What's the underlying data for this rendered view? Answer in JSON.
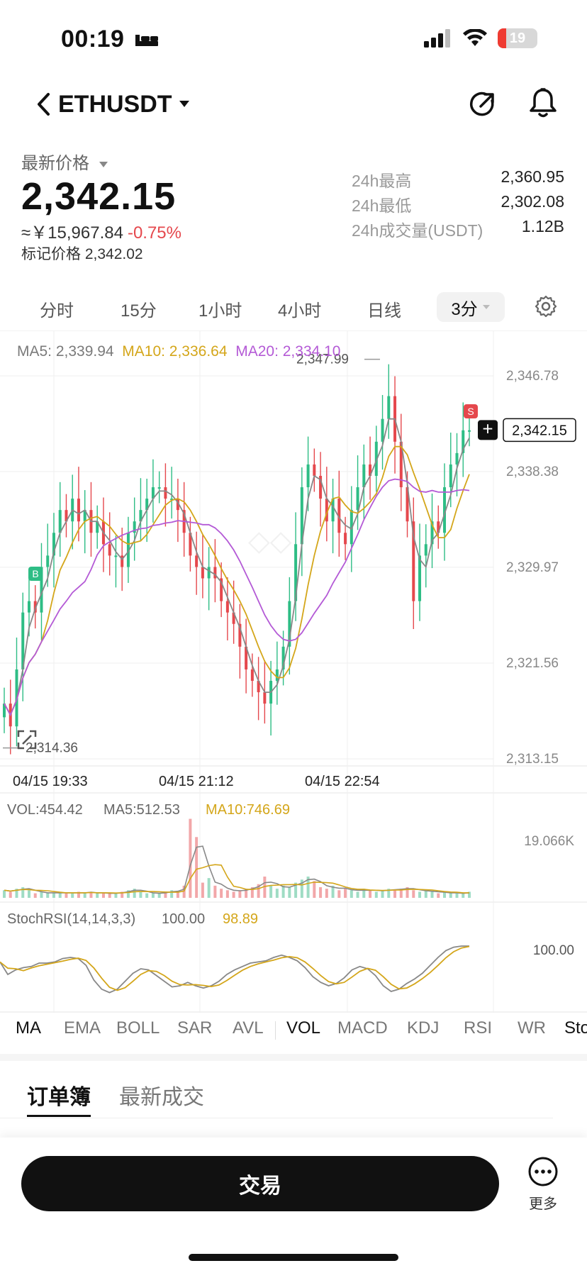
{
  "status_bar": {
    "time": "00:19",
    "battery": "19"
  },
  "header": {
    "symbol": "ETHUSDT"
  },
  "price": {
    "label": "最新价格",
    "last": "2,342.15",
    "cny": "≈￥15,967.84",
    "change": "-0.75%",
    "mark_label": "标记价格",
    "mark_value": "2,342.02",
    "stats": [
      {
        "label": "24h最高",
        "value": "2,360.95"
      },
      {
        "label": "24h最低",
        "value": "2,302.08"
      },
      {
        "label": "24h成交量(USDT)",
        "value": "1.12B"
      }
    ]
  },
  "timeframes": [
    "分时",
    "15分",
    "1小时",
    "4小时",
    "日线"
  ],
  "timeframe_active": "3分",
  "chart": {
    "ma_legend": {
      "ma5": "MA5: 2,339.94",
      "ma10": "MA10: 2,336.64",
      "ma20": "MA20: 2,334.10"
    },
    "y_ticks": [
      "2,346.78",
      "2,338.38",
      "2,329.97",
      "2,321.56",
      "2,313.15"
    ],
    "high_label": "2,347.99",
    "low_label": "2,314.36",
    "last_price_tag": "2,342.15",
    "buy_marker": "B",
    "sell_marker": "S",
    "x_ticks": [
      "04/15 19:33",
      "04/15 21:12",
      "04/15 22:54"
    ],
    "vol_legend": {
      "vol": "VOL:454.42",
      "ma5": "MA5:512.53",
      "ma10": "MA10:746.69"
    },
    "vol_max": "19.066K",
    "rsi_legend": {
      "name": "StochRSI(14,14,3,3)",
      "k": "100.00",
      "d": "98.89"
    },
    "rsi_tick": "100.00",
    "colors": {
      "up": "#2ebd85",
      "down": "#e5484d",
      "ma5": "#888888",
      "ma10": "#d4a61a",
      "ma20": "#b45ad6"
    }
  },
  "chart_data": {
    "type": "candlestick",
    "ylim": [
      2313.15,
      2346.78
    ],
    "x_ticks": [
      "04/15 19:33",
      "04/15 21:12",
      "04/15 22:54"
    ],
    "close_series": [
      2318,
      2316,
      2321,
      2326,
      2327,
      2326,
      2330,
      2331,
      2333,
      2335,
      2334,
      2336,
      2334,
      2335,
      2333,
      2334,
      2332,
      2331,
      2331,
      2330,
      2333,
      2334,
      2335,
      2336,
      2337,
      2337,
      2336,
      2336,
      2335,
      2333,
      2331,
      2330,
      2329,
      2330,
      2329,
      2327,
      2326,
      2325,
      2323,
      2321,
      2320,
      2319,
      2318,
      2320,
      2321,
      2323,
      2327,
      2332,
      2337,
      2339,
      2338,
      2336,
      2334,
      2336,
      2333,
      2332,
      2335,
      2337,
      2339,
      2338,
      2341,
      2343,
      2345,
      2341,
      2337,
      2334,
      2327,
      2331,
      2332,
      2334,
      2333,
      2337,
      2339,
      2340,
      2342,
      2342
    ],
    "volumes": [
      0.5,
      0.4,
      0.6,
      0.7,
      0.5,
      0.3,
      0.4,
      0.3,
      0.3,
      0.4,
      0.3,
      0.3,
      0.4,
      0.3,
      0.4,
      0.3,
      0.3,
      0.3,
      0.3,
      0.4,
      0.5,
      0.6,
      0.4,
      0.3,
      0.3,
      0.3,
      0.4,
      0.5,
      0.4,
      0.8,
      5.2,
      4.0,
      1.0,
      1.3,
      0.8,
      0.6,
      0.5,
      0.4,
      0.5,
      0.6,
      0.7,
      0.9,
      1.4,
      0.8,
      0.6,
      0.8,
      0.7,
      1.0,
      1.2,
      1.4,
      1.1,
      0.7,
      0.6,
      0.8,
      0.5,
      0.6,
      0.5,
      0.4,
      0.6,
      0.5,
      0.4,
      0.5,
      0.6,
      0.5,
      0.6,
      0.7,
      0.5,
      0.4,
      0.5,
      0.4,
      0.3,
      0.4,
      0.3,
      0.3,
      0.3,
      0.4
    ],
    "stoch_rsi_k": [
      72,
      50,
      58,
      62,
      64,
      70,
      70,
      72,
      78,
      80,
      78,
      66,
      40,
      24,
      18,
      24,
      38,
      52,
      60,
      58,
      48,
      38,
      28,
      30,
      36,
      30,
      26,
      30,
      38,
      50,
      58,
      64,
      70,
      72,
      74,
      80,
      84,
      80,
      74,
      62,
      46,
      36,
      30,
      34,
      44,
      58,
      64,
      60,
      48,
      30,
      20,
      24,
      34,
      42,
      52,
      66,
      80,
      92,
      98,
      100,
      100
    ]
  },
  "indicator_tabs": [
    "MA",
    "EMA",
    "BOLL",
    "SAR",
    "AVL",
    "VOL",
    "MACD",
    "KDJ",
    "RSI",
    "WR",
    "StochRSI"
  ],
  "orderbook": {
    "tab_orderbook": "订单簿",
    "tab_trades": "最新成交"
  },
  "bottom": {
    "trade_label": "交易",
    "more_label": "更多"
  }
}
